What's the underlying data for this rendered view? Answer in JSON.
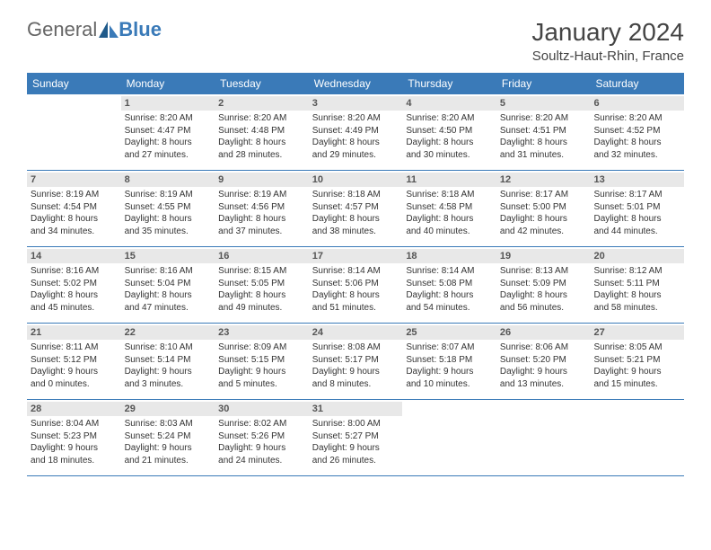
{
  "logo": {
    "text1": "General",
    "text2": "Blue"
  },
  "title": "January 2024",
  "location": "Soultz-Haut-Rhin, France",
  "colors": {
    "header_bg": "#3a7ab8",
    "header_text": "#ffffff",
    "daynum_bg": "#e8e8e8",
    "row_border": "#3a7ab8",
    "text": "#333333",
    "title_text": "#444444"
  },
  "day_headers": [
    "Sunday",
    "Monday",
    "Tuesday",
    "Wednesday",
    "Thursday",
    "Friday",
    "Saturday"
  ],
  "weeks": [
    [
      {
        "num": "",
        "lines": []
      },
      {
        "num": "1",
        "lines": [
          "Sunrise: 8:20 AM",
          "Sunset: 4:47 PM",
          "Daylight: 8 hours",
          "and 27 minutes."
        ]
      },
      {
        "num": "2",
        "lines": [
          "Sunrise: 8:20 AM",
          "Sunset: 4:48 PM",
          "Daylight: 8 hours",
          "and 28 minutes."
        ]
      },
      {
        "num": "3",
        "lines": [
          "Sunrise: 8:20 AM",
          "Sunset: 4:49 PM",
          "Daylight: 8 hours",
          "and 29 minutes."
        ]
      },
      {
        "num": "4",
        "lines": [
          "Sunrise: 8:20 AM",
          "Sunset: 4:50 PM",
          "Daylight: 8 hours",
          "and 30 minutes."
        ]
      },
      {
        "num": "5",
        "lines": [
          "Sunrise: 8:20 AM",
          "Sunset: 4:51 PM",
          "Daylight: 8 hours",
          "and 31 minutes."
        ]
      },
      {
        "num": "6",
        "lines": [
          "Sunrise: 8:20 AM",
          "Sunset: 4:52 PM",
          "Daylight: 8 hours",
          "and 32 minutes."
        ]
      }
    ],
    [
      {
        "num": "7",
        "lines": [
          "Sunrise: 8:19 AM",
          "Sunset: 4:54 PM",
          "Daylight: 8 hours",
          "and 34 minutes."
        ]
      },
      {
        "num": "8",
        "lines": [
          "Sunrise: 8:19 AM",
          "Sunset: 4:55 PM",
          "Daylight: 8 hours",
          "and 35 minutes."
        ]
      },
      {
        "num": "9",
        "lines": [
          "Sunrise: 8:19 AM",
          "Sunset: 4:56 PM",
          "Daylight: 8 hours",
          "and 37 minutes."
        ]
      },
      {
        "num": "10",
        "lines": [
          "Sunrise: 8:18 AM",
          "Sunset: 4:57 PM",
          "Daylight: 8 hours",
          "and 38 minutes."
        ]
      },
      {
        "num": "11",
        "lines": [
          "Sunrise: 8:18 AM",
          "Sunset: 4:58 PM",
          "Daylight: 8 hours",
          "and 40 minutes."
        ]
      },
      {
        "num": "12",
        "lines": [
          "Sunrise: 8:17 AM",
          "Sunset: 5:00 PM",
          "Daylight: 8 hours",
          "and 42 minutes."
        ]
      },
      {
        "num": "13",
        "lines": [
          "Sunrise: 8:17 AM",
          "Sunset: 5:01 PM",
          "Daylight: 8 hours",
          "and 44 minutes."
        ]
      }
    ],
    [
      {
        "num": "14",
        "lines": [
          "Sunrise: 8:16 AM",
          "Sunset: 5:02 PM",
          "Daylight: 8 hours",
          "and 45 minutes."
        ]
      },
      {
        "num": "15",
        "lines": [
          "Sunrise: 8:16 AM",
          "Sunset: 5:04 PM",
          "Daylight: 8 hours",
          "and 47 minutes."
        ]
      },
      {
        "num": "16",
        "lines": [
          "Sunrise: 8:15 AM",
          "Sunset: 5:05 PM",
          "Daylight: 8 hours",
          "and 49 minutes."
        ]
      },
      {
        "num": "17",
        "lines": [
          "Sunrise: 8:14 AM",
          "Sunset: 5:06 PM",
          "Daylight: 8 hours",
          "and 51 minutes."
        ]
      },
      {
        "num": "18",
        "lines": [
          "Sunrise: 8:14 AM",
          "Sunset: 5:08 PM",
          "Daylight: 8 hours",
          "and 54 minutes."
        ]
      },
      {
        "num": "19",
        "lines": [
          "Sunrise: 8:13 AM",
          "Sunset: 5:09 PM",
          "Daylight: 8 hours",
          "and 56 minutes."
        ]
      },
      {
        "num": "20",
        "lines": [
          "Sunrise: 8:12 AM",
          "Sunset: 5:11 PM",
          "Daylight: 8 hours",
          "and 58 minutes."
        ]
      }
    ],
    [
      {
        "num": "21",
        "lines": [
          "Sunrise: 8:11 AM",
          "Sunset: 5:12 PM",
          "Daylight: 9 hours",
          "and 0 minutes."
        ]
      },
      {
        "num": "22",
        "lines": [
          "Sunrise: 8:10 AM",
          "Sunset: 5:14 PM",
          "Daylight: 9 hours",
          "and 3 minutes."
        ]
      },
      {
        "num": "23",
        "lines": [
          "Sunrise: 8:09 AM",
          "Sunset: 5:15 PM",
          "Daylight: 9 hours",
          "and 5 minutes."
        ]
      },
      {
        "num": "24",
        "lines": [
          "Sunrise: 8:08 AM",
          "Sunset: 5:17 PM",
          "Daylight: 9 hours",
          "and 8 minutes."
        ]
      },
      {
        "num": "25",
        "lines": [
          "Sunrise: 8:07 AM",
          "Sunset: 5:18 PM",
          "Daylight: 9 hours",
          "and 10 minutes."
        ]
      },
      {
        "num": "26",
        "lines": [
          "Sunrise: 8:06 AM",
          "Sunset: 5:20 PM",
          "Daylight: 9 hours",
          "and 13 minutes."
        ]
      },
      {
        "num": "27",
        "lines": [
          "Sunrise: 8:05 AM",
          "Sunset: 5:21 PM",
          "Daylight: 9 hours",
          "and 15 minutes."
        ]
      }
    ],
    [
      {
        "num": "28",
        "lines": [
          "Sunrise: 8:04 AM",
          "Sunset: 5:23 PM",
          "Daylight: 9 hours",
          "and 18 minutes."
        ]
      },
      {
        "num": "29",
        "lines": [
          "Sunrise: 8:03 AM",
          "Sunset: 5:24 PM",
          "Daylight: 9 hours",
          "and 21 minutes."
        ]
      },
      {
        "num": "30",
        "lines": [
          "Sunrise: 8:02 AM",
          "Sunset: 5:26 PM",
          "Daylight: 9 hours",
          "and 24 minutes."
        ]
      },
      {
        "num": "31",
        "lines": [
          "Sunrise: 8:00 AM",
          "Sunset: 5:27 PM",
          "Daylight: 9 hours",
          "and 26 minutes."
        ]
      },
      {
        "num": "",
        "lines": []
      },
      {
        "num": "",
        "lines": []
      },
      {
        "num": "",
        "lines": []
      }
    ]
  ]
}
